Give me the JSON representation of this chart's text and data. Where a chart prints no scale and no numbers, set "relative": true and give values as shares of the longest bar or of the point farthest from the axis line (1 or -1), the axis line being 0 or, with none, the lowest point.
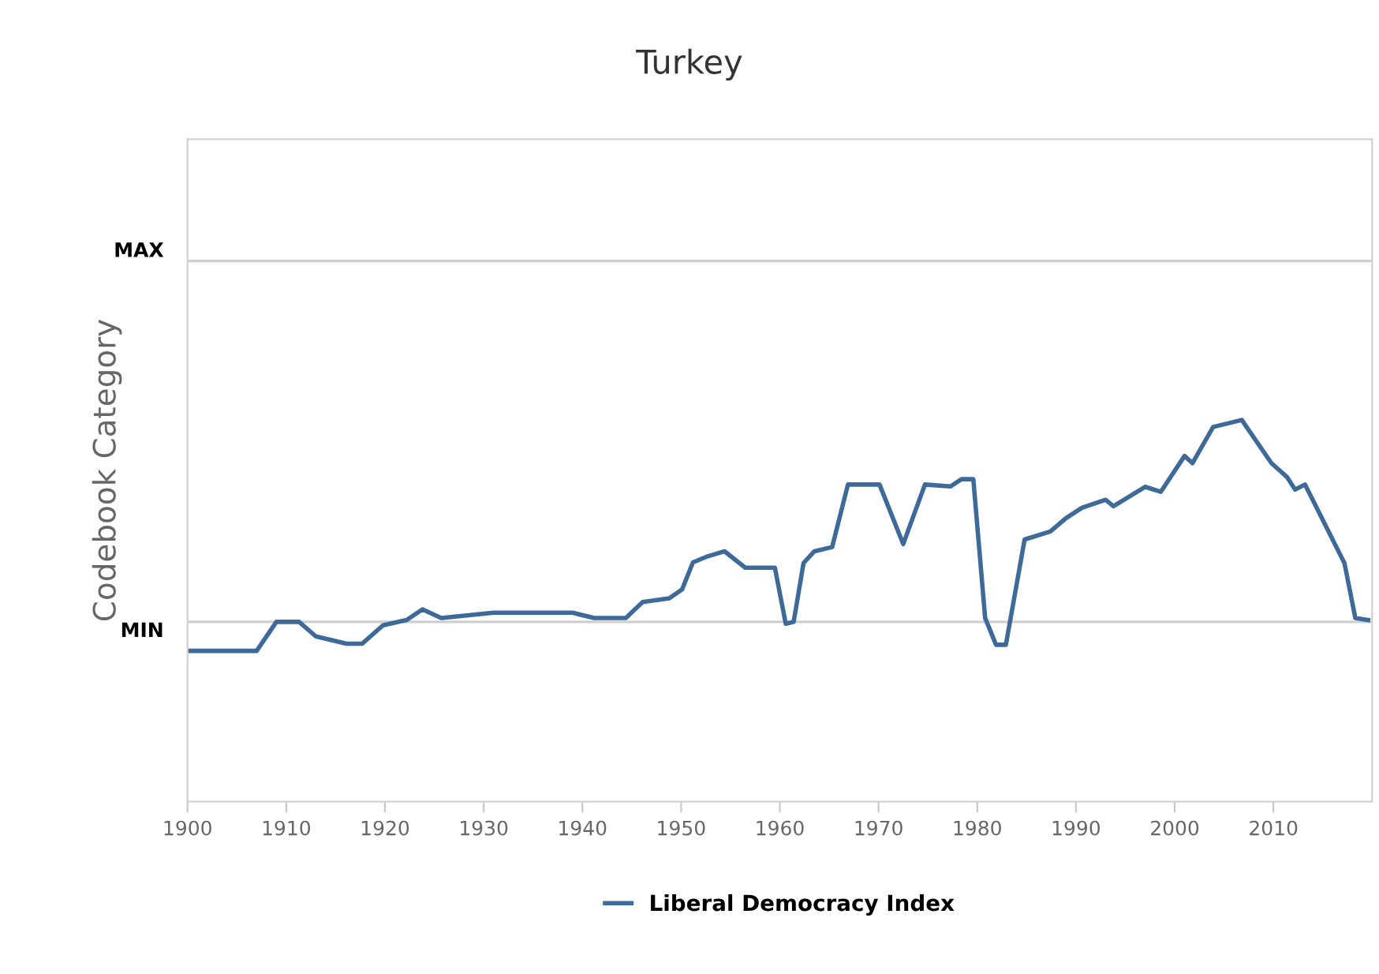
{
  "chart_data": {
    "type": "line",
    "title": "Turkey",
    "ylabel": "Codebook Category",
    "relative": true,
    "xlim": [
      1900,
      2020
    ],
    "xticks": [
      1900,
      1910,
      1920,
      1930,
      1940,
      1950,
      1960,
      1970,
      1980,
      1990,
      2000,
      2010
    ],
    "ref_lines": [
      {
        "axis": "y",
        "value": 0.471,
        "label": "MIN",
        "color": "#cfcfcf"
      },
      {
        "axis": "y",
        "value": 1.417,
        "label": "MAX",
        "color": "#cfcfcf"
      }
    ],
    "legend": "bottom",
    "marker": "none",
    "line_style": "solid",
    "series": [
      {
        "name": "Liberal Democracy Index",
        "color": "#3d6a99",
        "x": [
          1900,
          1907,
          1909,
          1911.3,
          1913,
          1916.1,
          1917.7,
          1919.8,
          1922.2,
          1923.8,
          1925.7,
          1931,
          1939,
          1941.2,
          1944.4,
          1946.1,
          1948.8,
          1950.1,
          1951.2,
          1952.5,
          1954.4,
          1956.5,
          1959.5,
          1960.6,
          1961.4,
          1962.4,
          1963.5,
          1965.3,
          1966.9,
          1970.1,
          1972.5,
          1974.7,
          1977.3,
          1978.4,
          1979.6,
          1980.8,
          1981.9,
          1982.9,
          1984.8,
          1987.4,
          1989.0,
          1990.6,
          1993.0,
          1993.8,
          1997.0,
          1998.6,
          2001.0,
          2001.8,
          2003.9,
          2006.8,
          2009.8,
          2011.4,
          2012.2,
          2013.2,
          2017.2,
          2018.3,
          2019.6
        ],
        "values": [
          0.395,
          0.395,
          0.471,
          0.471,
          0.433,
          0.414,
          0.414,
          0.462,
          0.476,
          0.504,
          0.481,
          0.495,
          0.495,
          0.481,
          0.481,
          0.523,
          0.533,
          0.556,
          0.627,
          0.641,
          0.656,
          0.613,
          0.613,
          0.466,
          0.471,
          0.625,
          0.656,
          0.667,
          0.831,
          0.831,
          0.675,
          0.831,
          0.826,
          0.845,
          0.845,
          0.481,
          0.411,
          0.411,
          0.687,
          0.708,
          0.743,
          0.77,
          0.791,
          0.774,
          0.825,
          0.812,
          0.906,
          0.887,
          0.982,
          1.0,
          0.887,
          0.85,
          0.818,
          0.831,
          0.625,
          0.481,
          0.476
        ]
      }
    ]
  }
}
